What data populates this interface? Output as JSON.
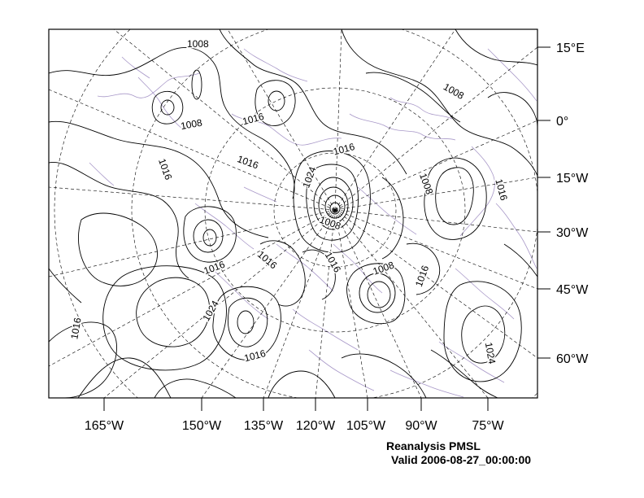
{
  "figure": {
    "title": "Reanalysis PMSL",
    "valid_time": "Valid 2006-08-27_00:00:00"
  },
  "axes": {
    "bottom_labels": [
      "165°W",
      "150°W",
      "135°W",
      "120°W",
      "105°W",
      "90°W",
      "75°W"
    ],
    "right_labels": [
      "15°E",
      "0°",
      "15°W",
      "30°W",
      "45°W",
      "60°W"
    ]
  },
  "contour_labels": [
    "1008",
    "1008",
    "1008",
    "1008",
    "1008",
    "1008",
    "1016",
    "1016",
    "1016",
    "1016",
    "1016",
    "1016",
    "1016",
    "1016",
    "1016",
    "1016",
    "1016",
    "1024",
    "1024",
    "1024"
  ],
  "colors": {
    "contour": "#000000",
    "coastline": "#a898c8",
    "gridline": "#000000",
    "frame": "#000000"
  }
}
